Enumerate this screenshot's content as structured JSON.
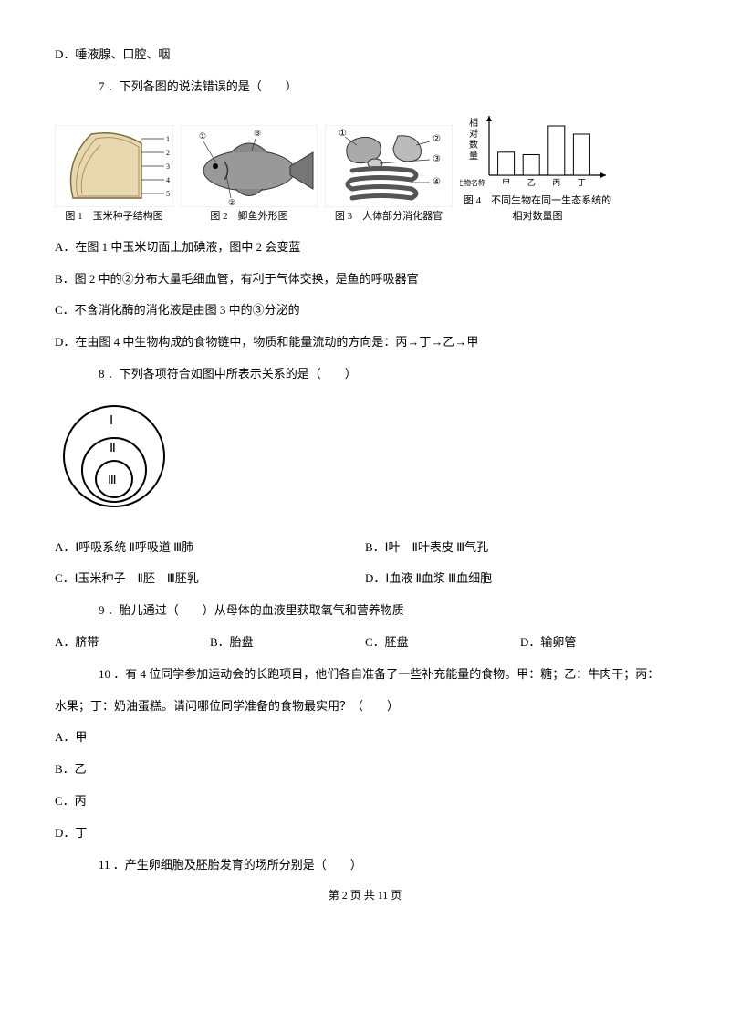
{
  "q6_optD": "D．唾液腺、口腔、咽",
  "q7": {
    "stem": "7 ．下列各图的说法错误的是（　　）",
    "fig1_label": "图 1　玉米种子结构图",
    "fig2_label": "图 2　鲫鱼外形图",
    "fig3_label": "图 3　人体部分消化器官",
    "fig4_ylabel": "相对数量",
    "fig4_xlabel": "生物名称 甲　乙　丙　丁",
    "fig4_label": "图 4　不同生物在同一生态系统的相对数量图",
    "chart": {
      "categories": [
        "甲",
        "乙",
        "丙",
        "丁"
      ],
      "values": [
        28,
        25,
        60,
        50
      ],
      "bar_color": "#ffffff",
      "bar_border": "#000000",
      "axis_color": "#000000"
    },
    "optA": "A．在图 1 中玉米切面上加碘液，图中 2 会变蓝",
    "optB": "B．图 2 中的②分布大量毛细血管，有利于气体交换，是鱼的呼吸器官",
    "optC": "C．不含消化酶的消化液是由图 3 中的③分泌的",
    "optD": "D．在由图 4 中生物构成的食物链中，物质和能量流动的方向是：丙→丁→乙→甲"
  },
  "q8": {
    "stem": "8 ．下列各项符合如图中所表示关系的是（　　）",
    "venn": {
      "labels": [
        "Ⅰ",
        "Ⅱ",
        "Ⅲ"
      ],
      "stroke": "#000000",
      "fill": "#ffffff"
    },
    "optA": "A．Ⅰ呼吸系统  Ⅱ呼吸道  Ⅲ肺",
    "optB": "B．Ⅰ叶　Ⅱ叶表皮  Ⅲ气孔",
    "optC": "C．Ⅰ玉米种子　Ⅱ胚　Ⅲ胚乳",
    "optD": "D．Ⅰ血液  Ⅱ血浆  Ⅲ血细胞"
  },
  "q9": {
    "stem": "9 ．胎儿通过（　　）从母体的血液里获取氧气和营养物质",
    "optA": "A．脐带",
    "optB": "B．胎盘",
    "optC": "C．胚盘",
    "optD": "D．输卵管"
  },
  "q10": {
    "stem_l1": "10 ．有 4 位同学参加运动会的长跑项目，他们各自准备了一些补充能量的食物。甲：糖；乙：牛肉干；丙：",
    "stem_l2": "水果；丁：奶油蛋糕。请问哪位同学准备的食物最实用？（　　）",
    "optA": "A．甲",
    "optB": "B．乙",
    "optC": "C．丙",
    "optD": "D．丁"
  },
  "q11": {
    "stem": "11 ．产生卵细胞及胚胎发育的场所分别是（　　）"
  },
  "footer": "第 2 页 共 11 页"
}
